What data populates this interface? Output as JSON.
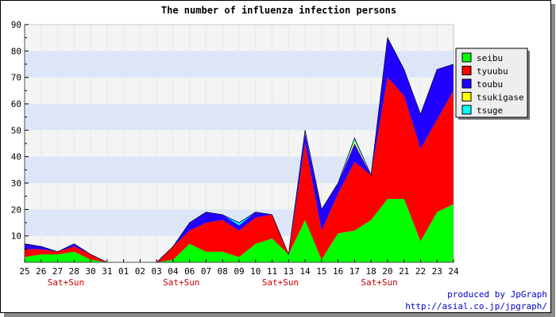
{
  "chart_data": {
    "type": "area",
    "stacked": true,
    "title": "The number of influenza infection persons",
    "categories": [
      "25",
      "26",
      "27",
      "28",
      "30",
      "31",
      "01",
      "02",
      "03",
      "04",
      "06",
      "07",
      "08",
      "09",
      "10",
      "11",
      "13",
      "14",
      "15",
      "16",
      "17",
      "18",
      "20",
      "21",
      "22",
      "23",
      "24"
    ],
    "weekend_labels": [
      {
        "after_category": "27",
        "text": "Sat+Sun"
      },
      {
        "after_category": "04",
        "text": "Sat+Sun"
      },
      {
        "after_category": "11",
        "text": "Sat+Sun"
      },
      {
        "after_category": "18",
        "text": "Sat+Sun"
      }
    ],
    "ylim": [
      0,
      90
    ],
    "yticks": [
      10,
      20,
      30,
      40,
      50,
      60,
      70,
      80,
      90
    ],
    "grid": true,
    "legend_position": "right",
    "series": [
      {
        "name": "seibu",
        "color": "#00ff00",
        "values": [
          2,
          3,
          3,
          4,
          1,
          0,
          0,
          0,
          0,
          1,
          7,
          4,
          4,
          2,
          7,
          9,
          3,
          16,
          1,
          11,
          12,
          16,
          24,
          24,
          8,
          19,
          22
        ]
      },
      {
        "name": "tyuubu",
        "color": "#ff0000",
        "values": [
          3,
          2,
          1,
          2,
          2,
          0,
          0,
          0,
          0,
          5,
          5,
          11,
          12,
          10,
          10,
          9,
          0,
          29,
          11,
          15,
          26,
          17,
          46,
          39,
          35,
          35,
          43
        ]
      },
      {
        "name": "toubu",
        "color": "#2200ff",
        "values": [
          2,
          1,
          0,
          1,
          0,
          0,
          0,
          0,
          0,
          0,
          3,
          4,
          2,
          2,
          2,
          0,
          0,
          4,
          8,
          4,
          7,
          0,
          15,
          10,
          13,
          19,
          10
        ]
      },
      {
        "name": "tsukigase",
        "color": "#ffff00",
        "values": [
          0,
          0,
          0,
          0,
          0,
          0,
          0,
          0,
          0,
          0,
          0,
          0,
          0,
          0,
          0,
          0,
          0,
          1,
          0,
          0,
          1,
          0,
          0,
          0,
          0,
          0,
          0
        ]
      },
      {
        "name": "tsuge",
        "color": "#00ffff",
        "values": [
          0,
          0,
          0,
          0,
          0,
          0,
          0,
          0,
          0,
          0,
          0,
          0,
          0,
          1,
          0,
          0,
          0,
          0,
          0,
          0,
          1,
          0,
          0,
          0,
          0,
          0,
          0
        ]
      }
    ]
  },
  "credits": {
    "line1": "produced by JpGraph",
    "line2": "http://asial.co.jp/jpgraph/"
  },
  "colors": {
    "band_light": "#f4f4f4",
    "band_blue": "#dde6f8",
    "weekend_label": "#cc0000",
    "credits": "#0000cc"
  }
}
